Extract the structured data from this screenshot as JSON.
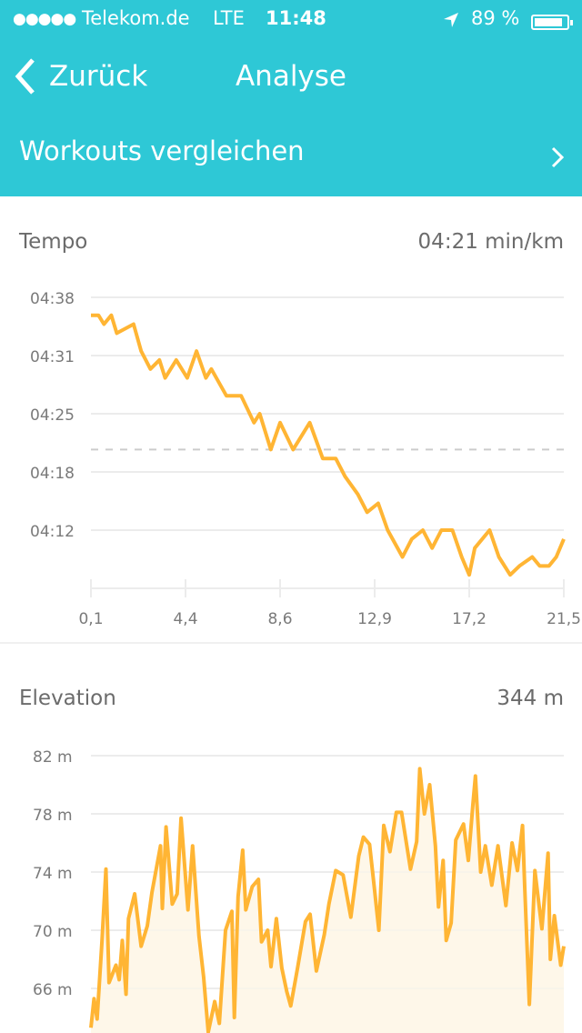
{
  "status_bar": {
    "signal": "●●●●●",
    "carrier": "Telekom.de",
    "network": "LTE",
    "time": "11:48",
    "battery": "89 %",
    "battery_level": 0.89,
    "location_icon": "location-arrow-icon"
  },
  "nav": {
    "back_label": "Zurück",
    "title": "Analyse"
  },
  "compare": {
    "label": "Workouts vergleichen"
  },
  "colors": {
    "header": "#2ec8d6",
    "line": "#ffb534",
    "fill": "#fef7e9",
    "grid": "#ececec",
    "avg": "#cccccc"
  },
  "tempo": {
    "title": "Tempo",
    "value": "04:21 min/km"
  },
  "elevation": {
    "title": "Elevation",
    "value": "344 m"
  },
  "chart_data": [
    {
      "type": "line",
      "title": "Tempo",
      "x_unit": "km",
      "y_format": "mm:ss",
      "xticks": [
        "0,1",
        "4,4",
        "8,6",
        "12,9",
        "17,2",
        "21,5"
      ],
      "yticks": [
        "04:38",
        "04:31",
        "04:25",
        "04:18",
        "04:12"
      ],
      "xlim": [
        0.1,
        21.5
      ],
      "average": "04:21",
      "grid": true,
      "x": [
        0.1,
        0.44,
        0.69,
        1.02,
        1.27,
        2.03,
        2.37,
        2.79,
        3.2,
        3.46,
        3.96,
        4.46,
        4.88,
        5.3,
        5.55,
        6.23,
        6.9,
        7.48,
        7.74,
        8.24,
        8.66,
        9.25,
        10.0,
        10.59,
        11.18,
        11.6,
        12.18,
        12.6,
        13.1,
        13.53,
        14.2,
        14.62,
        15.12,
        15.54,
        15.96,
        16.46,
        16.88,
        17.22,
        17.47,
        18.14,
        18.56,
        19.07,
        19.49,
        20.07,
        20.41,
        20.83,
        21.16,
        21.5
      ],
      "y": [
        "04:36",
        "04:36",
        "04:35",
        "04:36",
        "04:34",
        "04:35",
        "04:32",
        "04:30",
        "04:31",
        "04:29",
        "04:31",
        "04:29",
        "04:32",
        "04:29",
        "04:30",
        "04:27",
        "04:27",
        "04:24",
        "04:25",
        "04:21",
        "04:24",
        "04:21",
        "04:24",
        "04:20",
        "04:20",
        "04:18",
        "04:16",
        "04:14",
        "04:15",
        "04:12",
        "04:09",
        "04:11",
        "04:12",
        "04:10",
        "04:12",
        "04:12",
        "04:09",
        "04:07",
        "04:10",
        "04:12",
        "04:09",
        "04:07",
        "04:08",
        "04:09",
        "04:08",
        "04:08",
        "04:09",
        "04:11"
      ]
    },
    {
      "type": "area",
      "title": "Elevation",
      "x_unit": "km",
      "yticks": [
        "82 m",
        "78 m",
        "74 m",
        "70 m",
        "66 m"
      ],
      "xlim": [
        0.1,
        21.5
      ],
      "grid": true,
      "x": [
        0.1,
        0.24,
        0.38,
        0.6,
        0.78,
        0.92,
        1.23,
        1.38,
        1.52,
        1.69,
        1.8,
        2.08,
        2.37,
        2.65,
        2.86,
        3.25,
        3.33,
        3.5,
        3.78,
        4.0,
        4.18,
        4.49,
        4.7,
        4.99,
        5.2,
        5.41,
        5.7,
        5.91,
        6.19,
        6.48,
        6.59,
        6.76,
        6.97,
        7.11,
        7.4,
        7.68,
        7.82,
        8.1,
        8.25,
        8.49,
        8.74,
        8.96,
        9.14,
        9.45,
        9.81,
        10.02,
        10.3,
        10.66,
        10.87,
        11.18,
        11.51,
        11.86,
        12.22,
        12.43,
        12.71,
        12.92,
        13.13,
        13.35,
        13.63,
        13.92,
        14.16,
        14.56,
        14.84,
        14.98,
        15.19,
        15.43,
        15.69,
        15.83,
        16.04,
        16.18,
        16.4,
        16.61,
        16.96,
        17.18,
        17.39,
        17.5,
        17.74,
        17.95,
        18.24,
        18.52,
        18.88,
        19.16,
        19.4,
        19.63,
        19.73,
        19.94,
        20.19,
        20.51,
        20.79,
        20.89,
        21.07,
        21.36,
        21.5
      ],
      "y": [
        63.3,
        65.3,
        63.9,
        69.2,
        74.2,
        66.4,
        67.6,
        66.6,
        69.3,
        65.6,
        70.8,
        72.5,
        68.9,
        70.3,
        72.6,
        75.8,
        71.5,
        77.1,
        71.8,
        72.5,
        77.7,
        71.4,
        75.8,
        69.6,
        66.8,
        63.0,
        65.1,
        63.6,
        70.0,
        71.3,
        64.0,
        72.3,
        75.5,
        71.4,
        73.0,
        73.5,
        69.2,
        70.0,
        67.5,
        70.8,
        67.4,
        65.8,
        64.8,
        67.4,
        70.6,
        71.1,
        67.2,
        69.7,
        71.8,
        74.1,
        73.8,
        70.9,
        75.1,
        76.4,
        75.9,
        73.0,
        70.0,
        77.2,
        75.4,
        78.1,
        78.1,
        74.2,
        76.1,
        81.1,
        78.0,
        80.0,
        75.8,
        71.6,
        74.8,
        69.3,
        70.5,
        76.2,
        77.3,
        74.8,
        78.7,
        80.6,
        74.0,
        75.8,
        73.1,
        75.8,
        71.7,
        76.0,
        74.1,
        77.2,
        73.0,
        64.9,
        74.1,
        70.1,
        75.3,
        68.0,
        71.0,
        67.6,
        68.9
      ]
    }
  ]
}
